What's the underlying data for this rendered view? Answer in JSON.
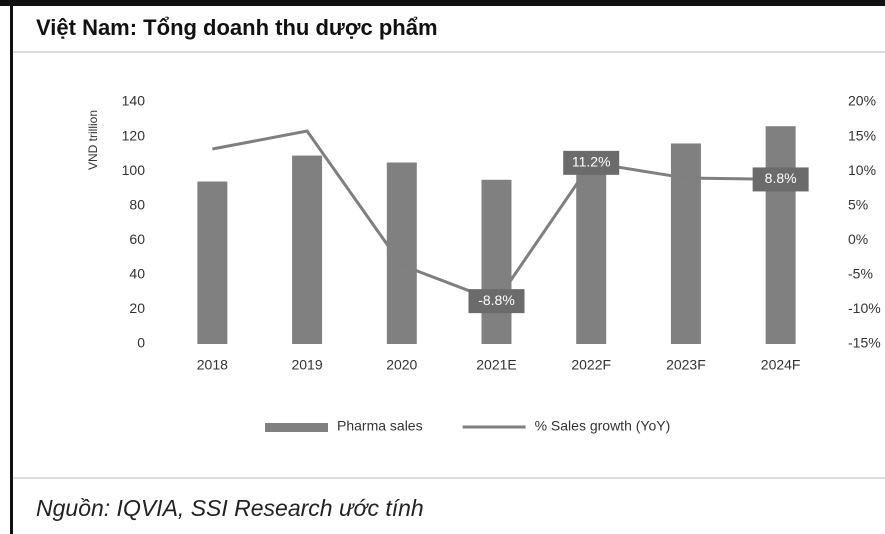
{
  "chart_data": {
    "type": "bar-line",
    "title": "Việt Nam: Tổng doanh thu dược phẩm",
    "y_label": "VND trillion",
    "source": "Nguồn: IQVIA, SSI Research ước tính",
    "categories": [
      "2018",
      "2019",
      "2020",
      "2021E",
      "2022F",
      "2023F",
      "2024F"
    ],
    "series": [
      {
        "name": "Pharma sales",
        "type": "bar",
        "color": "#808080",
        "values": [
          94,
          109,
          105,
          95,
          106,
          116,
          126
        ]
      },
      {
        "name": "% Sales growth (YoY)",
        "type": "line",
        "axis": "y2",
        "color": "#7f7f7f",
        "values": [
          13.2,
          15.8,
          -3.6,
          -8.8,
          11.2,
          9.0,
          8.8
        ],
        "value_labels": [
          null,
          null,
          null,
          "-8.8%",
          "11.2%",
          null,
          "8.8%"
        ]
      }
    ],
    "ylim": [
      0,
      140
    ],
    "yticks": [
      0,
      20,
      40,
      60,
      80,
      100,
      120,
      140
    ],
    "y2lim": [
      -15,
      20
    ],
    "y2ticks": [
      {
        "value": 20,
        "label": "20%"
      },
      {
        "value": 15,
        "label": "15%"
      },
      {
        "value": 10,
        "label": "10%"
      },
      {
        "value": 5,
        "label": "5%"
      },
      {
        "value": 0,
        "label": "0%"
      },
      {
        "value": -5,
        "label": "-5%"
      },
      {
        "value": -10,
        "label": "-10%"
      },
      {
        "value": -15,
        "label": "-15%"
      }
    ],
    "legend": "bottom"
  }
}
